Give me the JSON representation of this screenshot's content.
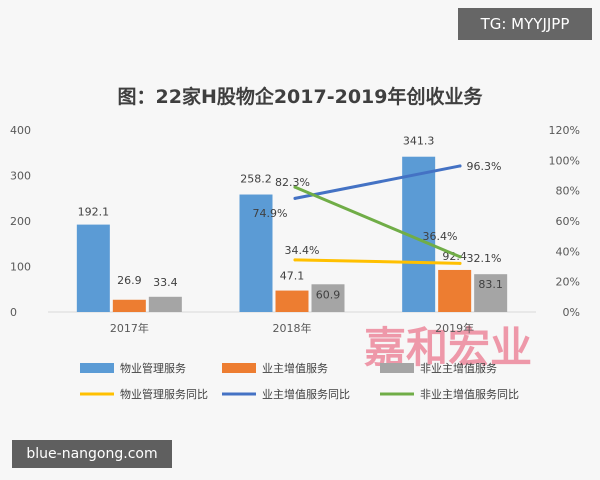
{
  "badges": {
    "tg": "TG: MYYJJPP",
    "site": "blue-nangong.com"
  },
  "watermark": "嘉和宏业",
  "chart_data": {
    "type": "bar",
    "title": "图：22家H股物企2017-2019年创收业务",
    "categories": [
      "2017年",
      "2018年",
      "2019年"
    ],
    "ylim": [
      0,
      400
    ],
    "yticks": [
      "0",
      "100",
      "200",
      "300",
      "400"
    ],
    "y2lim": [
      0,
      1.2
    ],
    "y2ticks": [
      "0%",
      "20%",
      "40%",
      "60%",
      "80%",
      "100%",
      "120%"
    ],
    "series": [
      {
        "name": "物业管理服务",
        "kind": "bar",
        "color": "#5b9bd5",
        "values": [
          192.1,
          258.2,
          341.3
        ],
        "labels": [
          "192.1",
          "258.2",
          "341.3"
        ]
      },
      {
        "name": "业主增值服务",
        "kind": "bar",
        "color": "#ed7d31",
        "values": [
          26.9,
          47.1,
          92.4
        ],
        "labels": [
          "26.9",
          "47.1",
          "92.4"
        ]
      },
      {
        "name": "非业主增值服务",
        "kind": "bar",
        "color": "#a5a5a5",
        "values": [
          33.4,
          60.9,
          83.1
        ],
        "labels": [
          "33.4",
          "60.9",
          "83.1"
        ]
      },
      {
        "name": "物业管理服务同比",
        "kind": "line",
        "axis": "right",
        "color": "#ffc000",
        "values": [
          null,
          0.344,
          0.321
        ],
        "labels": [
          "",
          "34.4%",
          "32.1%"
        ]
      },
      {
        "name": "业主增值服务同比",
        "kind": "line",
        "axis": "right",
        "color": "#4472c4",
        "values": [
          null,
          0.749,
          0.963
        ],
        "labels": [
          "",
          "74.9%",
          "96.3%"
        ]
      },
      {
        "name": "非业主增值服务同比",
        "kind": "line",
        "axis": "right",
        "color": "#70ad47",
        "values": [
          null,
          0.823,
          0.364
        ],
        "labels": [
          "",
          "82.3%",
          "36.4%"
        ]
      }
    ],
    "grid": false,
    "legend": "bottom"
  }
}
